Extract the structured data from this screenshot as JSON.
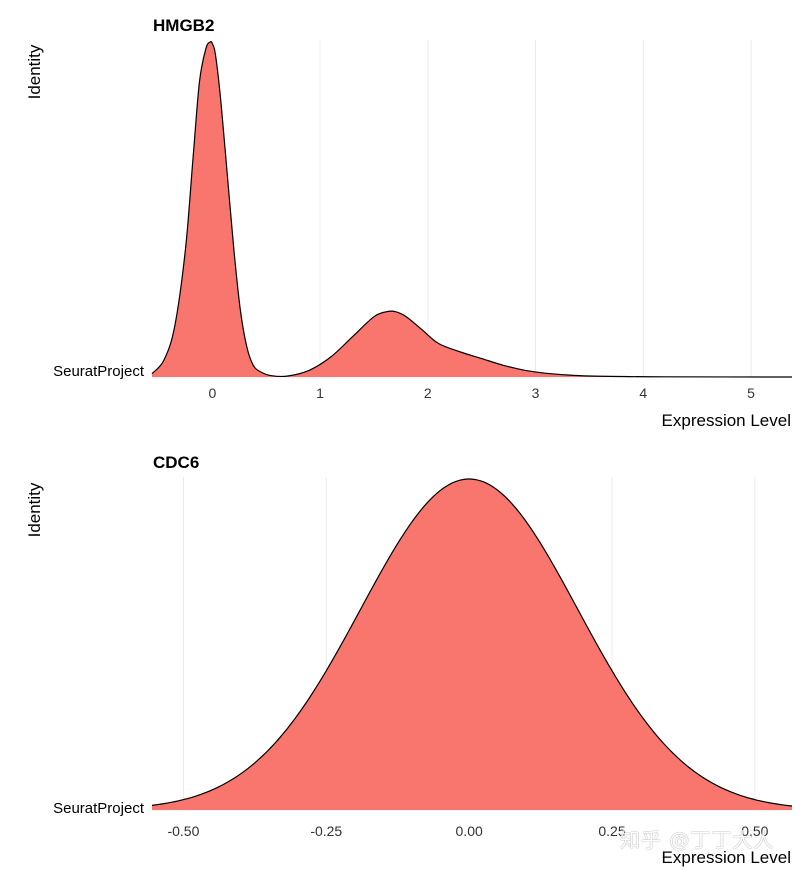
{
  "colors": {
    "fill": "#F8766D",
    "stroke": "#000000",
    "grid": "#EBEBEB"
  },
  "chart_data": [
    {
      "type": "area",
      "title": "HMGB2",
      "xlabel": "Expression Level",
      "ylabel": "Identity",
      "category": "SeuratProject",
      "xlim": [
        -0.56,
        5.38
      ],
      "xticks": [
        0,
        1,
        2,
        3,
        4,
        5
      ],
      "xtick_labels": [
        "0",
        "1",
        "2",
        "3",
        "4",
        "5"
      ],
      "grid": true,
      "density": {
        "x": [
          -0.56,
          -0.45,
          -0.35,
          -0.25,
          -0.18,
          -0.12,
          -0.06,
          -0.02,
          0.0,
          0.03,
          0.08,
          0.14,
          0.2,
          0.26,
          0.32,
          0.38,
          0.45,
          0.55,
          0.7,
          0.9,
          1.1,
          1.3,
          1.5,
          1.62,
          1.7,
          1.8,
          1.95,
          2.1,
          2.3,
          2.5,
          2.7,
          2.9,
          3.1,
          3.3,
          3.5,
          3.8,
          4.2,
          5.38
        ],
        "y": [
          0.01,
          0.05,
          0.15,
          0.38,
          0.65,
          0.88,
          0.98,
          1.0,
          0.995,
          0.96,
          0.82,
          0.6,
          0.38,
          0.2,
          0.09,
          0.035,
          0.015,
          0.004,
          0.003,
          0.02,
          0.06,
          0.12,
          0.18,
          0.195,
          0.195,
          0.18,
          0.14,
          0.1,
          0.075,
          0.055,
          0.035,
          0.02,
          0.011,
          0.006,
          0.003,
          0.0015,
          0.0005,
          0.0
        ]
      }
    },
    {
      "type": "area",
      "title": "CDC6",
      "xlabel": "Expression Level",
      "ylabel": "Identity",
      "category": "SeuratProject",
      "xlim": [
        -0.555,
        0.565
      ],
      "xticks": [
        -0.5,
        -0.25,
        0,
        0.25,
        0.5
      ],
      "xtick_labels": [
        "-0.50",
        "-0.25",
        "0.00",
        "0.25",
        "0.50"
      ],
      "grid": true,
      "density": {
        "kind": "gaussian",
        "mean": 0.0,
        "sd": 0.19
      }
    }
  ],
  "watermark": "知乎 @丁丁大人"
}
